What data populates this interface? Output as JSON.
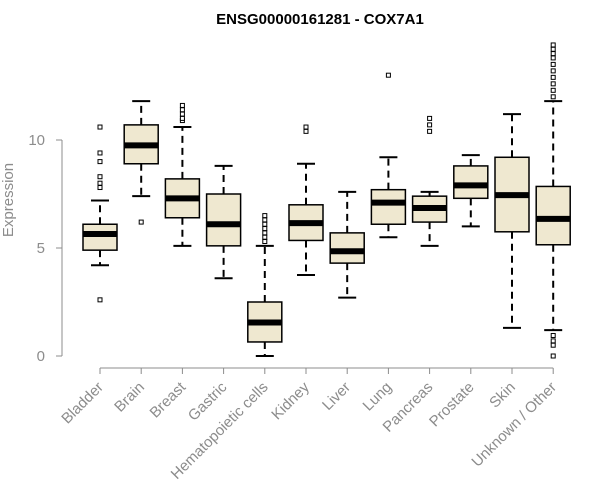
{
  "chart_data": {
    "type": "boxplot",
    "title": "ENSG00000161281 - COX7A1",
    "xlabel": "",
    "ylabel": "Expression",
    "ylim": [
      0,
      14.5
    ],
    "yticks": [
      0,
      5,
      10
    ],
    "grid": false,
    "box_fill": "#efe8d0",
    "box_stroke": "#000000",
    "axis_color": "#8c8c8c",
    "categories": [
      "Bladder",
      "Brain",
      "Breast",
      "Gastric",
      "Hematopoietic cells",
      "Kidney",
      "Liver",
      "Lung",
      "Pancreas",
      "Prostate",
      "Skin",
      "Unknown / Other"
    ],
    "boxes": [
      {
        "category": "Bladder",
        "min": 4.2,
        "q1": 4.9,
        "median": 5.65,
        "q3": 6.1,
        "max": 7.2,
        "outliers": [
          2.6,
          7.8,
          8.0,
          8.3,
          9.0,
          9.4,
          10.6
        ]
      },
      {
        "category": "Brain",
        "min": 7.4,
        "q1": 8.9,
        "median": 9.75,
        "q3": 10.7,
        "max": 11.8,
        "outliers": [
          6.2
        ]
      },
      {
        "category": "Breast",
        "min": 5.1,
        "q1": 6.4,
        "median": 7.3,
        "q3": 8.2,
        "max": 10.6,
        "outliers": [
          10.9,
          11.0,
          11.2,
          11.4,
          11.6
        ]
      },
      {
        "category": "Gastric",
        "min": 3.6,
        "q1": 5.1,
        "median": 6.1,
        "q3": 7.5,
        "max": 8.8,
        "outliers": []
      },
      {
        "category": "Hematopoietic cells",
        "min": 0.0,
        "q1": 0.65,
        "median": 1.55,
        "q3": 2.5,
        "max": 5.1,
        "outliers": [
          5.3,
          5.5,
          5.7,
          5.9,
          6.1,
          6.3,
          6.5
        ]
      },
      {
        "category": "Kidney",
        "min": 3.75,
        "q1": 5.35,
        "median": 6.15,
        "q3": 7.0,
        "max": 8.9,
        "outliers": [
          10.4,
          10.6
        ]
      },
      {
        "category": "Liver",
        "min": 2.7,
        "q1": 4.3,
        "median": 4.85,
        "q3": 5.7,
        "max": 7.6,
        "outliers": []
      },
      {
        "category": "Lung",
        "min": 5.5,
        "q1": 6.1,
        "median": 7.1,
        "q3": 7.7,
        "max": 9.2,
        "outliers": [
          13.0
        ]
      },
      {
        "category": "Pancreas",
        "min": 5.1,
        "q1": 6.2,
        "median": 6.85,
        "q3": 7.4,
        "max": 7.6,
        "outliers": [
          10.4,
          10.7,
          11.0
        ]
      },
      {
        "category": "Prostate",
        "min": 6.0,
        "q1": 7.3,
        "median": 7.9,
        "q3": 8.8,
        "max": 9.3,
        "outliers": []
      },
      {
        "category": "Skin",
        "min": 1.3,
        "q1": 5.75,
        "median": 7.45,
        "q3": 9.2,
        "max": 11.2,
        "outliers": []
      },
      {
        "category": "Unknown / Other",
        "min": 1.2,
        "q1": 5.15,
        "median": 6.35,
        "q3": 7.85,
        "max": 11.8,
        "outliers": [
          0.0,
          0.5,
          0.7,
          0.95,
          12.0,
          12.3,
          12.6,
          12.9,
          13.2,
          13.5,
          13.8,
          14.0,
          14.2,
          14.4
        ]
      }
    ]
  }
}
